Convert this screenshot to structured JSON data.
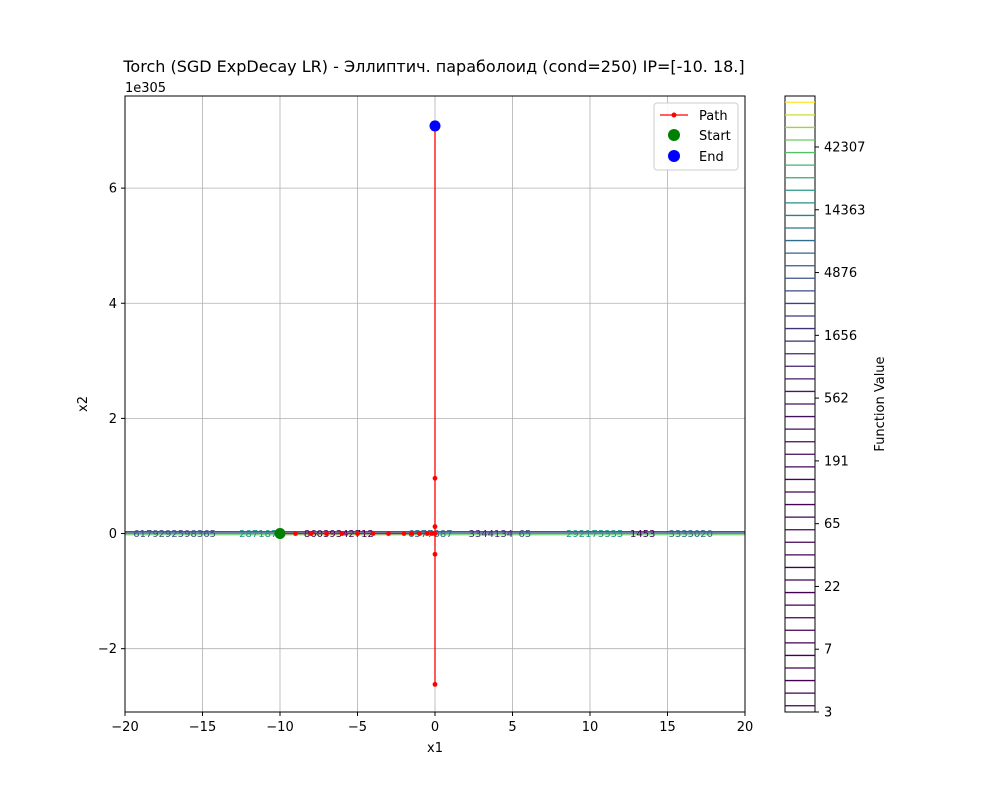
{
  "chart_data": {
    "type": "line",
    "title": "Torch (SGD ExpDecay LR) - Эллиптич. параболоид (cond=250) IP=[-10.  18.]",
    "xlabel": "x1",
    "ylabel": "x2",
    "y_offset_label": "1e305",
    "xlim": [
      -20,
      20
    ],
    "ylim": [
      -3.1,
      7.6
    ],
    "x_ticks": [
      -20,
      -15,
      -10,
      -5,
      0,
      5,
      10,
      15,
      20
    ],
    "x_tick_labels": [
      "−20",
      "−15",
      "−10",
      "−5",
      "0",
      "5",
      "10",
      "15",
      "20"
    ],
    "y_ticks": [
      -2,
      0,
      2,
      4,
      6
    ],
    "y_tick_labels": [
      "−2",
      "0",
      "2",
      "4",
      "6"
    ],
    "grid": true,
    "legend_position": "top-right",
    "series": [
      {
        "name": "Path",
        "color": "#ff0000",
        "x": [
          -10,
          -9,
          -8,
          -7,
          -6,
          -5,
          -4,
          -3,
          -2,
          -1.5,
          -1,
          -0.5,
          -0.2,
          0,
          0,
          0,
          0,
          0,
          0,
          0
        ],
        "y": [
          0,
          0,
          0,
          0,
          0,
          0,
          0,
          0,
          0,
          0,
          0,
          0,
          0,
          0,
          0.12,
          -0.36,
          0.96,
          -2.62,
          7.08,
          7.08
        ]
      }
    ],
    "start": {
      "name": "Start",
      "x": -10,
      "y": 0,
      "color": "#008000"
    },
    "end": {
      "name": "End",
      "x": 0,
      "y": 7.08,
      "color": "#0000ff"
    },
    "contour_labels": [
      {
        "x": -16.8,
        "text": "6179292598365"
      },
      {
        "x": -11.2,
        "text": "2871870"
      },
      {
        "x": -6.2,
        "text": "86039342712"
      },
      {
        "x": -0.3,
        "text": "6577387"
      },
      {
        "x": 3.6,
        "text": "3344134"
      },
      {
        "x": 5.8,
        "text": "65"
      },
      {
        "x": 10.3,
        "text": "292175335"
      },
      {
        "x": 13.4,
        "text": "1453"
      },
      {
        "x": 16.5,
        "text": "3333020"
      }
    ],
    "colorbar": {
      "label": "Function Value",
      "tick_labels": [
        "42307",
        "14363",
        "4876",
        "1656",
        "562",
        "191",
        "65",
        "22",
        "7",
        "3"
      ]
    }
  }
}
